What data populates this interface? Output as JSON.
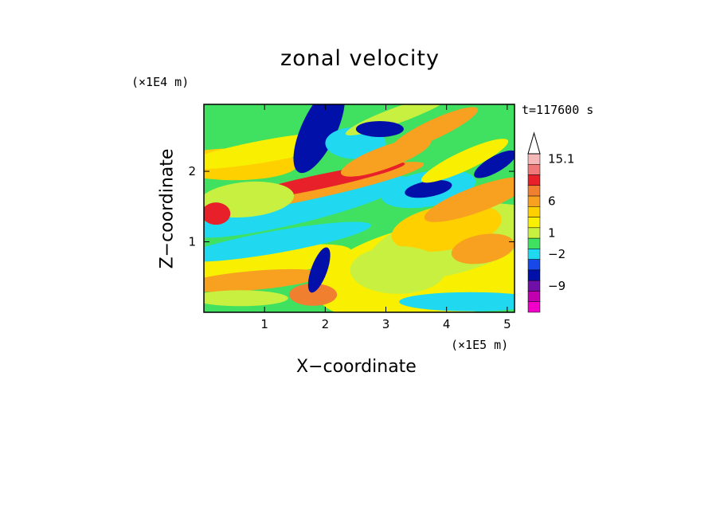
{
  "chart_data": {
    "type": "heatmap",
    "title": "zonal velocity",
    "xlabel": "X−coordinate",
    "ylabel": "Z−coordinate",
    "x_units": "(×1E5 m)",
    "y_units": "(×1E4 m)",
    "time_label": "t=117600 s",
    "xlim": [
      0,
      5.12
    ],
    "ylim": [
      0,
      2.95
    ],
    "x_ticks": [
      "1",
      "2",
      "3",
      "4",
      "5"
    ],
    "y_ticks": [
      "1",
      "2"
    ],
    "colorbar": {
      "labels": [
        "15.1",
        "6",
        "1",
        "−2",
        "−9"
      ],
      "colors": [
        "#f5b8b8",
        "#f07878",
        "#e8202a",
        "#f08030",
        "#f8a020",
        "#ffd000",
        "#f8f000",
        "#c8f040",
        "#40e060",
        "#20d8f0",
        "#1848e8",
        "#0010a8",
        "#7010a8",
        "#c000b0",
        "#f000c8"
      ]
    }
  }
}
